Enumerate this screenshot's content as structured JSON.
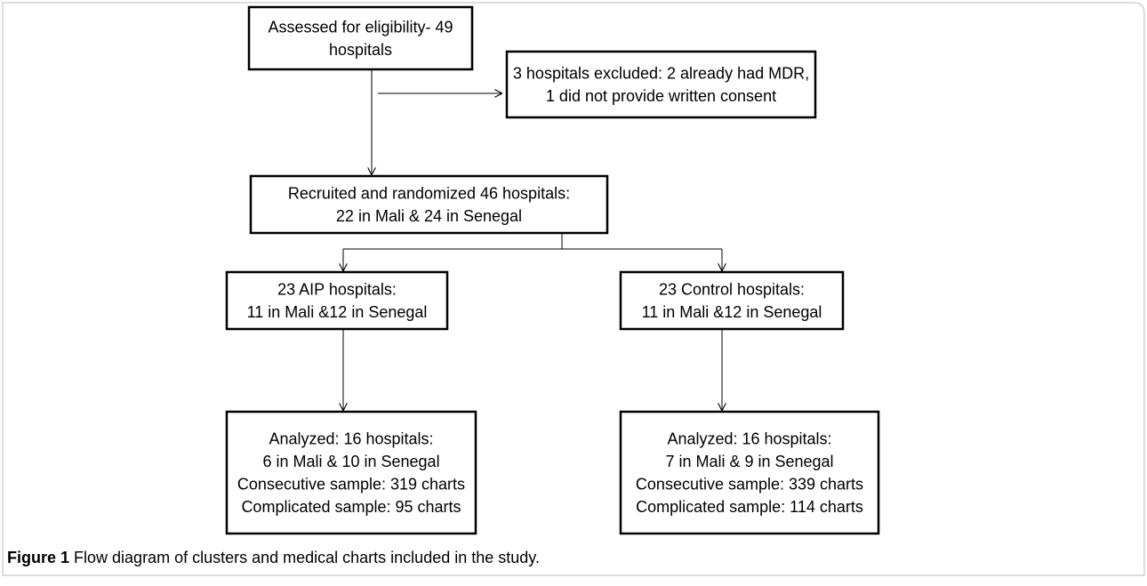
{
  "nodes": [
    {
      "lines": [
        "Assessed for eligibility- 49",
        "hospitals"
      ]
    },
    {
      "lines": [
        "3 hospitals excluded: 2 already had MDR,",
        "1 did not provide written consent"
      ]
    },
    {
      "lines": [
        "Recruited and randomized 46 hospitals:",
        "22 in Mali & 24 in Senegal"
      ]
    },
    {
      "lines": [
        "23 AIP hospitals:",
        "11 in Mali &12 in Senegal"
      ]
    },
    {
      "lines": [
        "23 Control hospitals:",
        "11 in Mali &12 in Senegal"
      ]
    },
    {
      "lines": [
        "Analyzed: 16 hospitals:",
        "6 in Mali & 10 in Senegal",
        "Consecutive sample: 319 charts",
        "Complicated sample: 95 charts"
      ]
    },
    {
      "lines": [
        "Analyzed: 16 hospitals:",
        "7 in Mali & 9 in Senegal",
        "Consecutive sample: 339 charts",
        "Complicated sample: 114 charts"
      ]
    }
  ],
  "caption": {
    "label": "Figure 1",
    "text": "Flow diagram of clusters and medical charts included in the study."
  }
}
